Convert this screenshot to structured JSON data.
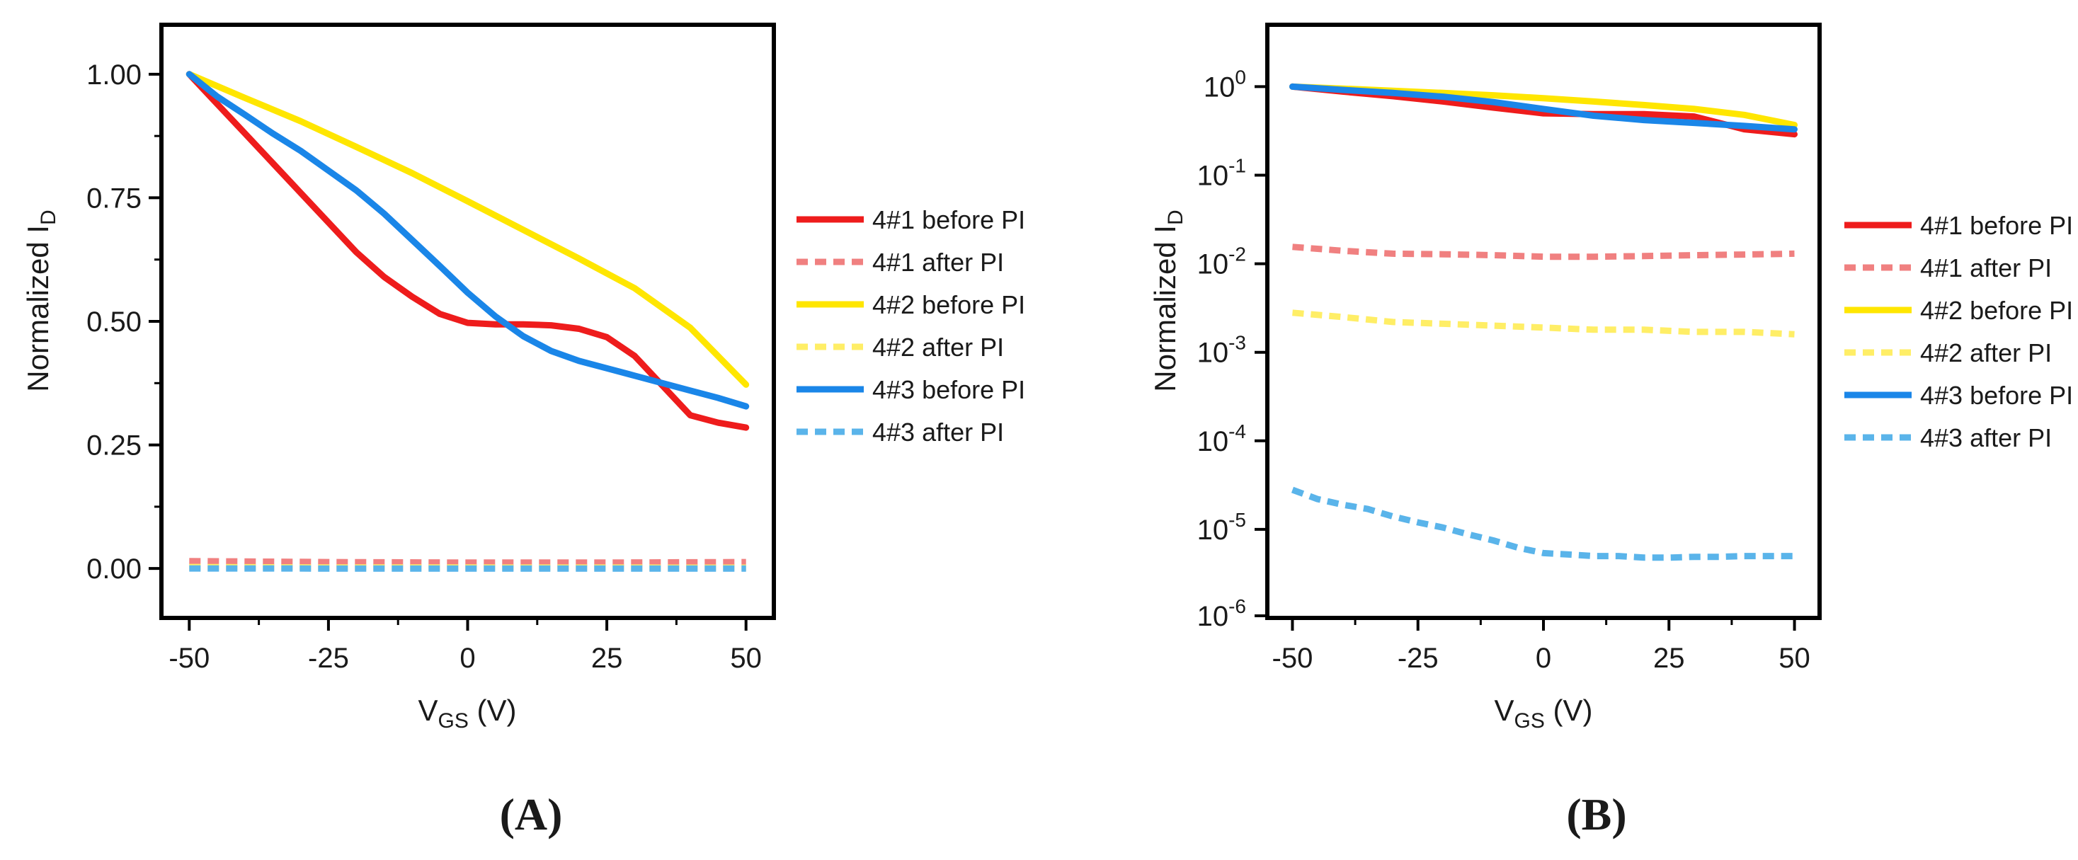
{
  "chart_data": [
    {
      "panel": "A",
      "type": "line",
      "panel_label": "(A)",
      "xlabel": "V",
      "xlabel_sub": "GS",
      "xlabel_unit": " (V)",
      "ylabel": "Normalized I",
      "ylabel_sub": "D",
      "xlim": [
        -55,
        55
      ],
      "ylim": [
        -0.1,
        1.1
      ],
      "yscale": "linear",
      "x_ticks": [
        -50,
        -25,
        0,
        25,
        50
      ],
      "x_tick_labels": [
        "-50",
        "-25",
        "0",
        "25",
        "50"
      ],
      "y_ticks": [
        0,
        0.25,
        0.5,
        0.75,
        1.0
      ],
      "y_tick_labels": [
        "0.00",
        "0.25",
        "0.50",
        "0.75",
        "1.00"
      ],
      "grid": false,
      "legend_position": "right-outside",
      "series": [
        {
          "name": "4#1 before PI",
          "color": "#ee1c1c",
          "dash": "solid",
          "x": [
            -50,
            -45,
            -40,
            -35,
            -30,
            -25,
            -20,
            -15,
            -10,
            -5,
            0,
            5,
            10,
            15,
            20,
            25,
            30,
            35,
            40,
            45,
            50
          ],
          "y": [
            1.0,
            0.94,
            0.88,
            0.82,
            0.76,
            0.7,
            0.64,
            0.59,
            0.55,
            0.515,
            0.497,
            0.494,
            0.494,
            0.492,
            0.485,
            0.468,
            0.43,
            0.37,
            0.31,
            0.295,
            0.285
          ]
        },
        {
          "name": "4#1 after PI",
          "color": "#f08080",
          "dash": "dashed",
          "x": [
            -50,
            -25,
            0,
            25,
            50
          ],
          "y": [
            0.015,
            0.013,
            0.012,
            0.012,
            0.013
          ]
        },
        {
          "name": "4#2 before PI",
          "color": "#ffe600",
          "dash": "solid",
          "x": [
            -50,
            -40,
            -30,
            -20,
            -10,
            0,
            10,
            20,
            30,
            40,
            50
          ],
          "y": [
            1.0,
            0.952,
            0.905,
            0.853,
            0.8,
            0.743,
            0.685,
            0.627,
            0.567,
            0.487,
            0.372
          ]
        },
        {
          "name": "4#2 after PI",
          "color": "#ffee66",
          "dash": "dashed",
          "x": [
            -50,
            -25,
            0,
            25,
            50
          ],
          "y": [
            0.003,
            0.002,
            0.002,
            0.0018,
            0.0016
          ]
        },
        {
          "name": "4#3 before PI",
          "color": "#1a86e8",
          "dash": "solid",
          "x": [
            -50,
            -45,
            -40,
            -35,
            -30,
            -25,
            -20,
            -15,
            -10,
            -5,
            0,
            5,
            10,
            15,
            20,
            25,
            30,
            35,
            40,
            45,
            50
          ],
          "y": [
            1.0,
            0.955,
            0.918,
            0.88,
            0.845,
            0.805,
            0.765,
            0.718,
            0.665,
            0.612,
            0.558,
            0.51,
            0.47,
            0.44,
            0.42,
            0.405,
            0.39,
            0.375,
            0.36,
            0.345,
            0.328
          ]
        },
        {
          "name": "4#3 after PI",
          "color": "#5ab4ea",
          "dash": "dashed",
          "x": [
            -50,
            -25,
            0,
            25,
            50
          ],
          "y": [
            3e-05,
            1e-05,
            5e-06,
            5e-06,
            5e-06
          ]
        }
      ]
    },
    {
      "panel": "B",
      "type": "line",
      "panel_label": "(B)",
      "xlabel": "V",
      "xlabel_sub": "GS",
      "xlabel_unit": " (V)",
      "ylabel": "Normalized I",
      "ylabel_sub": "D",
      "xlim": [
        -55,
        55
      ],
      "ylim": [
        1e-06,
        5
      ],
      "yscale": "log",
      "x_ticks": [
        -50,
        -25,
        0,
        25,
        50
      ],
      "x_tick_labels": [
        "-50",
        "-25",
        "0",
        "25",
        "50"
      ],
      "y_ticks": [
        1e-06,
        1e-05,
        0.0001,
        0.001,
        0.01,
        0.1,
        1
      ],
      "y_tick_base": "10",
      "y_tick_exponents": [
        "-6",
        "-5",
        "-4",
        "-3",
        "-2",
        "-1",
        "0"
      ],
      "grid": false,
      "legend_position": "right-outside",
      "series": [
        {
          "name": "4#1 before PI",
          "color": "#ee1c1c",
          "dash": "solid",
          "x": [
            -50,
            -40,
            -30,
            -20,
            -10,
            0,
            10,
            20,
            30,
            40,
            50
          ],
          "y": [
            1.0,
            0.88,
            0.78,
            0.68,
            0.58,
            0.5,
            0.49,
            0.49,
            0.46,
            0.33,
            0.29
          ]
        },
        {
          "name": "4#1 after PI",
          "color": "#f08080",
          "dash": "dashed",
          "x": [
            -50,
            -40,
            -30,
            -20,
            -10,
            0,
            10,
            20,
            30,
            40,
            50
          ],
          "y": [
            0.0155,
            0.014,
            0.013,
            0.0128,
            0.0125,
            0.012,
            0.012,
            0.0122,
            0.0125,
            0.0127,
            0.013
          ]
        },
        {
          "name": "4#2 before PI",
          "color": "#ffe600",
          "dash": "solid",
          "x": [
            -50,
            -40,
            -30,
            -20,
            -10,
            0,
            10,
            20,
            30,
            40,
            50
          ],
          "y": [
            1.0,
            0.95,
            0.9,
            0.85,
            0.8,
            0.74,
            0.68,
            0.62,
            0.56,
            0.48,
            0.37
          ]
        },
        {
          "name": "4#2 after PI",
          "color": "#ffee66",
          "dash": "dashed",
          "x": [
            -50,
            -40,
            -30,
            -20,
            -10,
            0,
            10,
            20,
            30,
            40,
            50
          ],
          "y": [
            0.0028,
            0.0025,
            0.0022,
            0.0021,
            0.002,
            0.0019,
            0.0018,
            0.0018,
            0.0017,
            0.0017,
            0.0016
          ]
        },
        {
          "name": "4#3 before PI",
          "color": "#1a86e8",
          "dash": "solid",
          "x": [
            -50,
            -40,
            -30,
            -20,
            -10,
            0,
            10,
            20,
            30,
            40,
            50
          ],
          "y": [
            1.0,
            0.92,
            0.85,
            0.77,
            0.67,
            0.56,
            0.47,
            0.42,
            0.39,
            0.36,
            0.33
          ]
        },
        {
          "name": "4#3 after PI",
          "color": "#5ab4ea",
          "dash": "dashed",
          "x": [
            -50,
            -45,
            -40,
            -35,
            -30,
            -25,
            -20,
            -15,
            -10,
            -5,
            0,
            5,
            10,
            15,
            20,
            25,
            30,
            35,
            40,
            45,
            50
          ],
          "y": [
            2.8e-05,
            2.2e-05,
            1.9e-05,
            1.7e-05,
            1.4e-05,
            1.2e-05,
            1.05e-05,
            8.8e-06,
            7.5e-06,
            6.2e-06,
            5.4e-06,
            5.2e-06,
            5e-06,
            5e-06,
            4.8e-06,
            4.8e-06,
            4.9e-06,
            4.9e-06,
            5e-06,
            5e-06,
            5e-06
          ]
        }
      ]
    }
  ]
}
